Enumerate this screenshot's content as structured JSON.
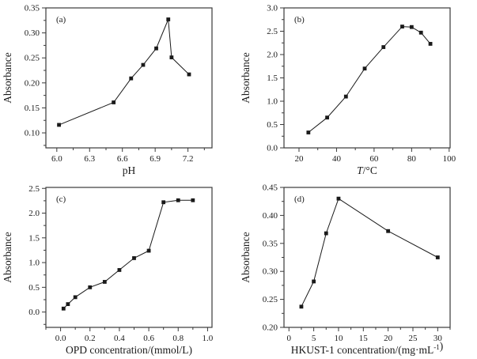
{
  "figure": {
    "background": "#ffffff",
    "data_color": "#1a1a1a",
    "axis_color": "#3a3a3a",
    "text_color": "#1a1a1a",
    "shared_ylabel": "Absorbance"
  },
  "chart_data": [
    {
      "type": "line",
      "panel": "(a)",
      "marker": "square",
      "ylabel": "Absorbance",
      "xlabel_plain": "pH",
      "xlabel_segments": [
        {
          "text": "pH",
          "style": "normal"
        }
      ],
      "xlim": [
        5.9,
        7.42
      ],
      "ylim": [
        0.07,
        0.35
      ],
      "xticks": [
        6.0,
        6.3,
        6.6,
        6.9,
        7.2
      ],
      "x_tick_labels": [
        "6.0",
        "6.3",
        "6.6",
        "6.9",
        "7.2"
      ],
      "yticks": [
        0.1,
        0.15,
        0.2,
        0.25,
        0.3,
        0.35
      ],
      "y_tick_labels": [
        "0.10",
        "0.15",
        "0.20",
        "0.25",
        "0.30",
        "0.35"
      ],
      "x": [
        6.02,
        6.52,
        6.68,
        6.79,
        6.91,
        7.02,
        7.05,
        7.21
      ],
      "y": [
        0.116,
        0.161,
        0.209,
        0.236,
        0.269,
        0.327,
        0.251,
        0.217
      ]
    },
    {
      "type": "line",
      "panel": "(b)",
      "marker": "square",
      "ylabel": "Absorbance",
      "xlabel_plain": "T/°C",
      "xlabel_segments": [
        {
          "text": "T",
          "style": "italic"
        },
        {
          "text": "/°C",
          "style": "normal"
        }
      ],
      "xlim": [
        12,
        100.5
      ],
      "ylim": [
        0.0,
        3.0
      ],
      "xticks": [
        20,
        40,
        60,
        80,
        100
      ],
      "x_tick_labels": [
        "20",
        "40",
        "60",
        "80",
        "100"
      ],
      "yticks": [
        0.0,
        0.5,
        1.0,
        1.5,
        2.0,
        2.5,
        3.0
      ],
      "y_tick_labels": [
        "0.0",
        "0.5",
        "1.0",
        "1.5",
        "2.0",
        "2.5",
        "3.0"
      ],
      "x": [
        25,
        35,
        45,
        55,
        65,
        75,
        80,
        85,
        90
      ],
      "y": [
        0.33,
        0.65,
        1.1,
        1.7,
        2.16,
        2.6,
        2.59,
        2.47,
        2.23
      ]
    },
    {
      "type": "line",
      "panel": "(c)",
      "marker": "square",
      "ylabel": "Absorbance",
      "xlabel_plain": "OPD concentration/(mmol/L)",
      "xlabel_segments": [
        {
          "text": "OPD concentration/(mmol/L)",
          "style": "normal"
        }
      ],
      "xlim": [
        -0.1,
        1.03
      ],
      "ylim": [
        -0.31,
        2.52
      ],
      "xticks": [
        0.0,
        0.2,
        0.4,
        0.6,
        0.8,
        1.0
      ],
      "x_tick_labels": [
        "0.0",
        "0.2",
        "0.4",
        "0.6",
        "0.8",
        "1.0"
      ],
      "yticks": [
        0.0,
        0.5,
        1.0,
        1.5,
        2.0,
        2.5
      ],
      "y_tick_labels": [
        "0.0",
        "0.5",
        "1.0",
        "1.5",
        "2.0",
        "2.5"
      ],
      "x": [
        0.02,
        0.05,
        0.1,
        0.2,
        0.3,
        0.4,
        0.5,
        0.6,
        0.7,
        0.8,
        0.9
      ],
      "y": [
        0.07,
        0.16,
        0.3,
        0.5,
        0.61,
        0.85,
        1.09,
        1.24,
        2.22,
        2.26,
        2.26
      ]
    },
    {
      "type": "line",
      "panel": "(d)",
      "marker": "square",
      "ylabel": "Absorbance",
      "xlabel_plain": "HKUST-1 concentration/(mg·mL⁻¹)",
      "xlabel_segments": [
        {
          "text": "HKUST-1 concentration/(mg·mL",
          "style": "normal"
        },
        {
          "text": "-1",
          "style": "sup"
        },
        {
          "text": ")",
          "style": "normal"
        }
      ],
      "xlim": [
        -1,
        32.5
      ],
      "ylim": [
        0.2,
        0.45
      ],
      "xticks": [
        0,
        5,
        10,
        15,
        20,
        25,
        30
      ],
      "x_tick_labels": [
        "0",
        "5",
        "10",
        "15",
        "20",
        "25",
        "30"
      ],
      "yticks": [
        0.2,
        0.25,
        0.3,
        0.35,
        0.4,
        0.45
      ],
      "y_tick_labels": [
        "0.20",
        "0.25",
        "0.30",
        "0.35",
        "0.40",
        "0.45"
      ],
      "x": [
        2.5,
        5,
        7.5,
        10,
        20,
        30
      ],
      "y": [
        0.237,
        0.282,
        0.368,
        0.43,
        0.372,
        0.325
      ]
    }
  ]
}
